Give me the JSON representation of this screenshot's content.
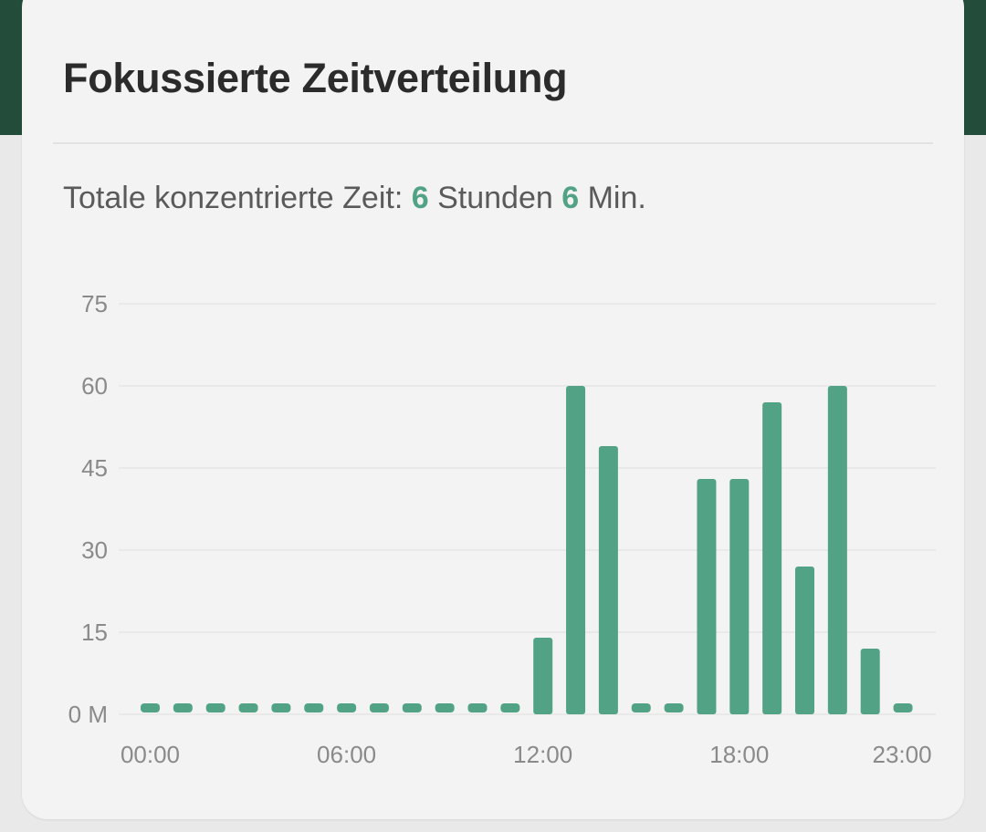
{
  "card": {
    "title": "Fokussierte Zeitverteilung",
    "summary": {
      "prefix": "Totale konzentrierte Zeit: ",
      "hours": "6",
      "hours_unit": " Stunden ",
      "minutes": "6",
      "minutes_unit": " Min."
    }
  },
  "colors": {
    "bar": "#52a386",
    "header_bg": "#234d3a"
  },
  "chart_data": {
    "type": "bar",
    "categories": [
      "00:00",
      "01:00",
      "02:00",
      "03:00",
      "04:00",
      "05:00",
      "06:00",
      "07:00",
      "08:00",
      "09:00",
      "10:00",
      "11:00",
      "12:00",
      "13:00",
      "14:00",
      "15:00",
      "16:00",
      "17:00",
      "18:00",
      "19:00",
      "20:00",
      "21:00",
      "22:00",
      "23:00"
    ],
    "values": [
      0,
      0,
      0,
      0,
      0,
      0,
      0,
      0,
      0,
      0,
      0,
      0,
      14,
      60,
      49,
      0,
      0,
      43,
      43,
      57,
      27,
      60,
      12,
      0
    ],
    "ylim": [
      0,
      75
    ],
    "yticks": [
      0,
      15,
      30,
      45,
      60,
      75
    ],
    "ytick_labels": [
      "0 M",
      "15",
      "30",
      "45",
      "60",
      "75"
    ],
    "xtick_labels": [
      "00:00",
      "06:00",
      "12:00",
      "18:00",
      "23:00"
    ],
    "xtick_indices": [
      0,
      6,
      12,
      18,
      23
    ],
    "grid": true,
    "legend": "none"
  }
}
